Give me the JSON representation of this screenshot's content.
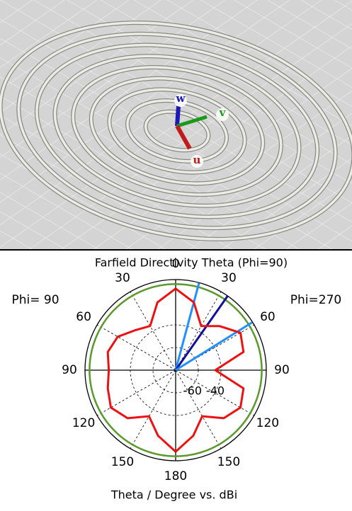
{
  "scene": {
    "axes": {
      "w": "w",
      "v": "v",
      "u": "u"
    }
  },
  "chart_data": {
    "type": "polar",
    "title": "Farfield Directivity Theta (Phi=90)",
    "xlabel": "Theta / Degree vs. dBi",
    "left_label": "Phi= 90",
    "right_label": "Phi=270",
    "theta": [
      0,
      15,
      30,
      45,
      60,
      75,
      90,
      105,
      120,
      135,
      150,
      165,
      180
    ],
    "series": [
      {
        "name": "Phi= 90",
        "side": "left",
        "color": "#ee1111",
        "values": [
          -8,
          -18,
          -35,
          -30,
          -21,
          -18,
          -21,
          -18,
          -14,
          -20,
          -33,
          -20,
          -8
        ]
      },
      {
        "name": "Phi=270",
        "side": "right",
        "color": "#ee1111",
        "values": [
          -8,
          -18,
          -35,
          -25,
          -14,
          -18,
          -45,
          -18,
          -14,
          -20,
          -33,
          -20,
          -8
        ]
      }
    ],
    "reference_circle": {
      "value": -4,
      "color": "#5a9a2a"
    },
    "beam_lines": [
      {
        "angle": 15,
        "color": "#1e90ff"
      },
      {
        "angle": 35,
        "color": "#1010a0"
      },
      {
        "angle": 58,
        "color": "#1e90ff"
      }
    ],
    "rlim": [
      -80,
      0
    ],
    "rticks": [
      -60,
      -40
    ],
    "thetaticks": [
      0,
      30,
      60,
      90,
      120,
      150,
      180
    ]
  }
}
